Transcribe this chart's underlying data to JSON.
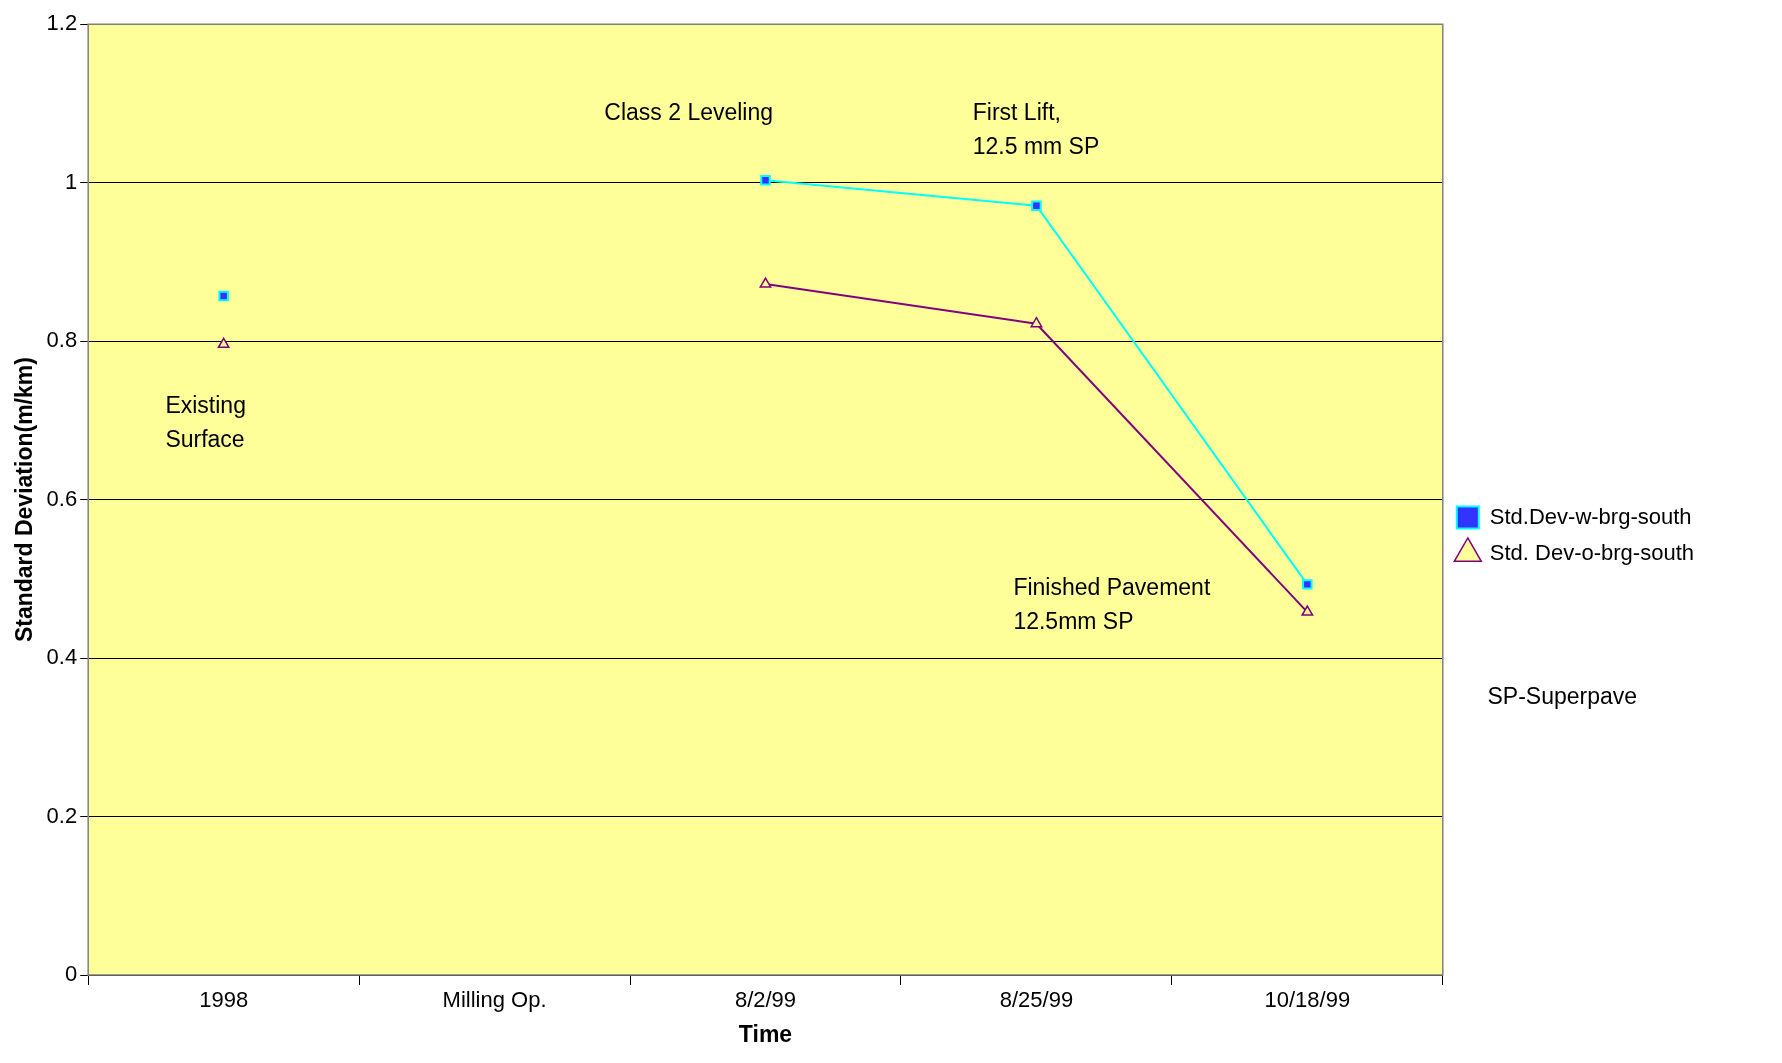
{
  "chart_data": {
    "type": "line",
    "xlabel": "Time",
    "ylabel": "Standard Deviation(m/km)",
    "categories": [
      "1998",
      "Milling Op.",
      "8/2/99",
      "8/25/99",
      "10/18/99"
    ],
    "series": [
      {
        "name": "Std.Dev-w-brg-south",
        "color": "#00ffff",
        "marker": "square",
        "values": [
          0.857,
          null,
          1.003,
          0.971,
          0.493
        ]
      },
      {
        "name": "Std. Dev-o-brg-south",
        "color": "#800080",
        "marker": "triangle",
        "values": [
          0.796,
          null,
          0.872,
          0.822,
          0.458
        ]
      }
    ],
    "ylim": [
      0,
      1.2
    ],
    "yticks": [
      0,
      0.2,
      0.4,
      0.6,
      0.8,
      1,
      1.2
    ],
    "grid": "y",
    "legend": "right",
    "line_style": "solid",
    "annotations": [
      "Existing\nSurface",
      "Class 2 Leveling",
      "First Lift,\n12.5 mm SP",
      "Finished Pavement\n12.5mm SP",
      "SP-Superpave"
    ]
  }
}
